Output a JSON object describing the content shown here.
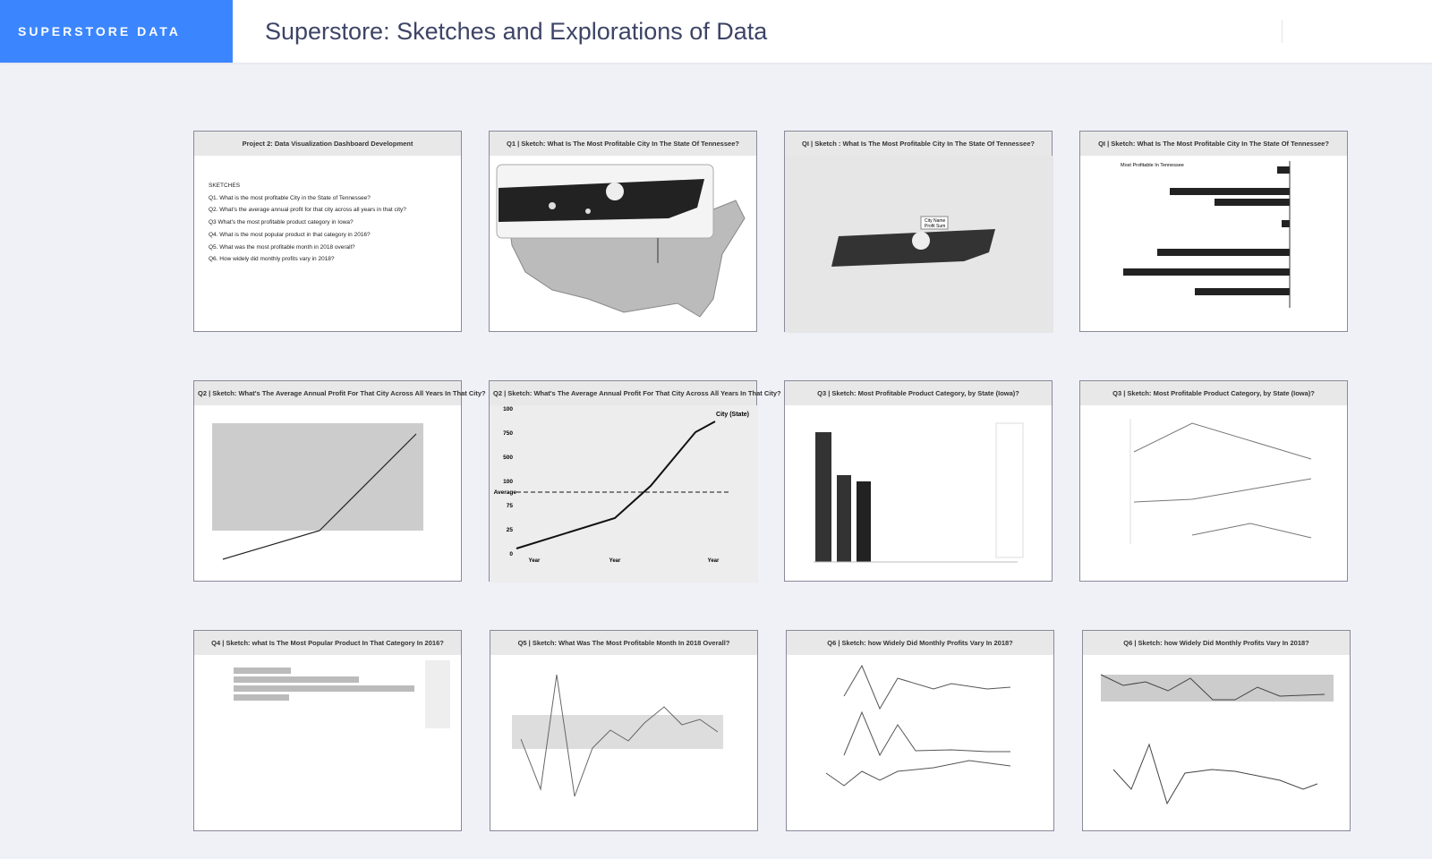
{
  "header": {
    "brand": "SUPERSTORE DATA",
    "title": "Superstore: Sketches and Explorations of Data"
  },
  "cards": [
    {
      "title": "Project 2: Data Visualization Dashboard Development",
      "heading": "SKETCHES",
      "lines": [
        "Q1.  What is the most profitable City in the State of Tennessee?",
        "Q2.   What's the average annual profit for that city across all years in that city?",
        "Q3  What's the most profitable product category in Iowa?",
        "Q4.  What is the most popular product in that category in 2016?",
        "Q5.  What was the most profitable month in 2018 overall?",
        "Q6.  How widely did monthly profits vary in 2018?"
      ]
    },
    {
      "title": "Q1 | Sketch: What Is The Most Profitable City In The State Of Tennessee?"
    },
    {
      "title": "QI | Sketch : What Is The Most Profitable City In The State Of Tennessee?",
      "labels": [
        "City Name",
        "Profit Sum"
      ]
    },
    {
      "title": "QI | Sketch: What Is The Most Profitable City In The State Of Tennessee?",
      "chart_title": "Most Profitable In Tennessee"
    },
    {
      "title": "Q2 | Sketch: What's The Average Annual Profit For That City Across All Years In That City?"
    },
    {
      "title": "Q2 | Sketch: What's The Average Annual Profit For That City Across All Years In That City?",
      "legend": "City (State)",
      "average": "Average",
      "xlabels": [
        "Year",
        "Year",
        "Year"
      ],
      "ylabels": [
        "100",
        "750",
        "500",
        "100",
        "75",
        "25",
        "0"
      ]
    },
    {
      "title": "Q3 | Sketch: Most Profitable Product Category, by State (Iowa)?"
    },
    {
      "title": "Q3 | Sketch: Most Profitable Product Category, by State (Iowa)?"
    },
    {
      "title": "Q4 | Sketch: what Is The Most Popular Product In That Category In 2016?"
    },
    {
      "title": "Q5 | Sketch: What Was The Most Profitable Month In 2018 Overall?"
    },
    {
      "title": "Q6 | Sketch: how Widely Did Monthly Profits Vary In 2018?"
    },
    {
      "title": "Q6 | Sketch: how Widely Did Monthly Profits Vary In 2018?"
    }
  ]
}
